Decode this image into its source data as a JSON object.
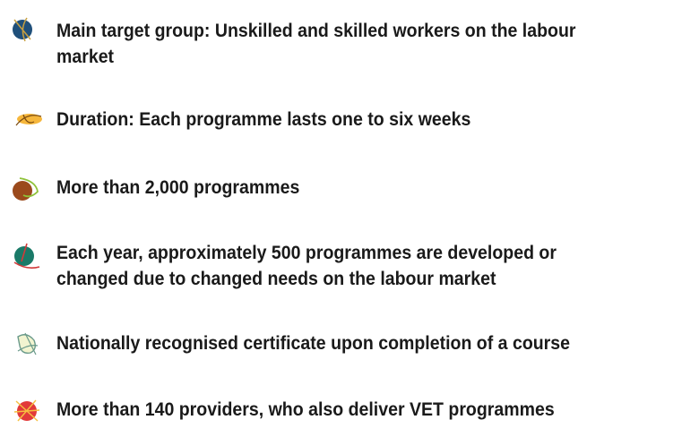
{
  "items": [
    {
      "lines": [
        "Main target group: Unskilled and skilled workers on the labour",
        "market"
      ]
    },
    {
      "lines": [
        "Duration: Each programme lasts one to six weeks"
      ]
    },
    {
      "lines": [
        "More than 2,000 programmes"
      ]
    },
    {
      "lines": [
        "Each year, approximately 500 programmes are developed or",
        "changed due to changed needs on the labour market"
      ]
    },
    {
      "lines": [
        "Nationally recognised certificate upon completion of a course"
      ]
    },
    {
      "lines": [
        "More than 140 providers, who also deliver VET programmes"
      ]
    }
  ]
}
